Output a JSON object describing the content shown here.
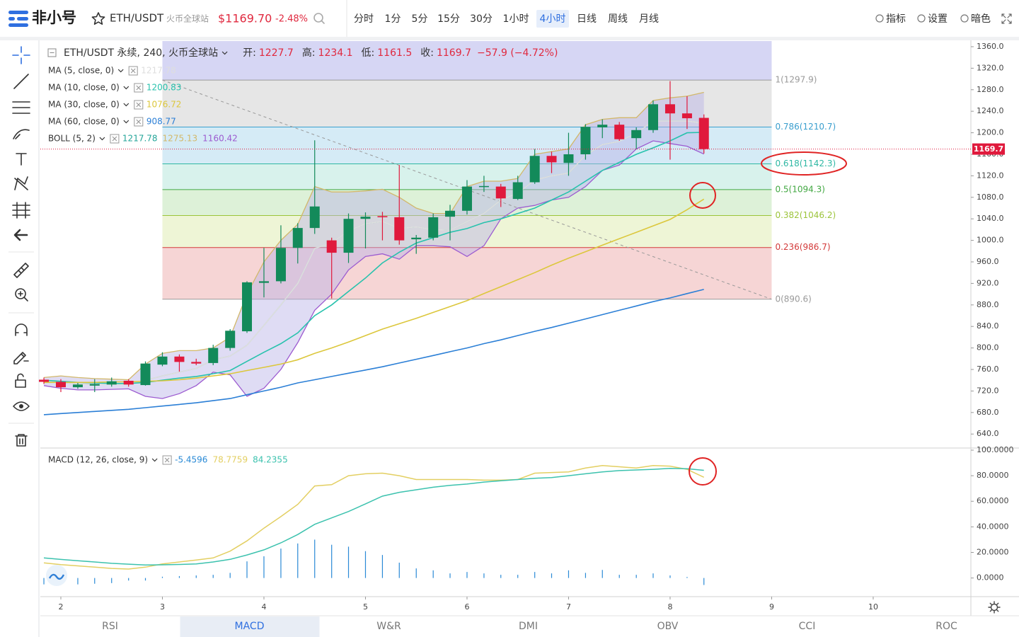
{
  "header": {
    "logo": "非小号",
    "symbol": "ETH/USDT",
    "exchange": "火币全球站",
    "price": "$1169.70",
    "change": "-2.48%"
  },
  "timeframes": [
    "分时",
    "1分",
    "5分",
    "15分",
    "30分",
    "1小时",
    "4小时",
    "日线",
    "周线",
    "月线"
  ],
  "active_timeframe": 6,
  "toolbar_right": [
    "指标",
    "设置",
    "暗色"
  ],
  "legend": {
    "title": "ETH/USDT 永续, 240, 火币全球站",
    "ohlc": [
      {
        "label": "开:",
        "value": 1227.7
      },
      {
        "label": "高:",
        "value": 1234.1
      },
      {
        "label": "低:",
        "value": 1161.5
      },
      {
        "label": "收:",
        "value": 1169.7
      }
    ],
    "change": "−57.9 (−4.72%)"
  },
  "chart_data": [
    {
      "type": "candlestick",
      "x": [
        1.833,
        2,
        2.167,
        2.333,
        2.5,
        2.667,
        2.833,
        3,
        3.167,
        3.333,
        3.5,
        3.667,
        3.833,
        4,
        4.167,
        4.333,
        4.5,
        4.667,
        4.833,
        5,
        5.167,
        5.333,
        5.5,
        5.667,
        5.833,
        6,
        6.167,
        6.333,
        6.5,
        6.667,
        6.833,
        7,
        7.167,
        7.333,
        7.5,
        7.667,
        7.833,
        8,
        8.167,
        8.333
      ],
      "open": [
        741,
        737,
        727,
        730,
        732,
        739,
        731,
        769,
        784,
        774,
        772,
        800,
        831,
        921,
        924,
        986,
        1023,
        1000,
        977,
        1040,
        1045,
        1043,
        1002,
        1005,
        1044,
        1055,
        1099,
        1100,
        1077,
        1108,
        1157,
        1144,
        1160,
        1210,
        1215,
        1190,
        1205,
        1253,
        1236,
        1227.7
      ],
      "high": [
        745,
        742,
        735,
        742,
        745,
        742,
        775,
        792,
        788,
        780,
        806,
        835,
        924,
        986,
        1028,
        1032,
        1186,
        1005,
        1050,
        1052,
        1053,
        1140,
        1010,
        1050,
        1066,
        1112,
        1120,
        1105,
        1120,
        1170,
        1165,
        1200,
        1216,
        1225,
        1220,
        1210,
        1260,
        1296,
        1268,
        1234.1
      ],
      "low": [
        733,
        718,
        724,
        718,
        728,
        728,
        730,
        766,
        756,
        768,
        768,
        795,
        828,
        894,
        920,
        957,
        1012,
        892,
        958,
        985,
        1000,
        992,
        975,
        1000,
        1000,
        1048,
        1090,
        1062,
        1075,
        1105,
        1125,
        1120,
        1150,
        1190,
        1185,
        1170,
        1200,
        1150,
        1207,
        1161.5
      ],
      "close": [
        737,
        727,
        732,
        733,
        738,
        732,
        771,
        784,
        774,
        771,
        800,
        832,
        922,
        924,
        986,
        1023,
        1063,
        977,
        1040,
        1044,
        1043,
        1000,
        1005,
        1043,
        1055,
        1100,
        1101,
        1078,
        1108,
        1157,
        1145,
        1160,
        1211,
        1215,
        1188,
        1205,
        1253,
        1236,
        1227,
        1169.7
      ],
      "up_color": "#138a5a",
      "down_color": "#e0193c",
      "series": [
        {
          "name": "MA (5, close, 0)",
          "color": "#dedede",
          "values": [
            737,
            736,
            733,
            732,
            732,
            732,
            740,
            748,
            755,
            762,
            778,
            785,
            805,
            842,
            880,
            920,
            985,
            995,
            1018,
            1031,
            1035,
            1022,
            1025,
            1020,
            1019,
            1035,
            1050,
            1075,
            1088,
            1112,
            1120,
            1125,
            1158,
            1178,
            1184,
            1199,
            1222,
            1222,
            1222,
            1217.78
          ]
        },
        {
          "name": "MA (10, close, 0)",
          "color": "#28c2ad",
          "values": [
            740,
            738,
            736,
            735,
            734,
            734,
            736,
            740,
            744,
            747,
            752,
            758,
            775,
            792,
            808,
            828,
            860,
            880,
            905,
            930,
            958,
            978,
            995,
            1005,
            1015,
            1022,
            1033,
            1040,
            1050,
            1060,
            1075,
            1090,
            1110,
            1130,
            1145,
            1160,
            1172,
            1185,
            1200,
            1200.83
          ]
        },
        {
          "name": "MA (30, close, 0)",
          "color": "#dcc73c",
          "values": [
            736,
            736,
            736,
            736,
            737,
            737,
            738,
            739,
            741,
            744,
            748,
            752,
            758,
            764,
            770,
            778,
            790,
            800,
            811,
            823,
            835,
            845,
            855,
            866,
            877,
            888,
            901,
            914,
            927,
            940,
            954,
            967,
            979,
            991,
            1003,
            1015,
            1027,
            1039,
            1057,
            1076.72
          ]
        },
        {
          "name": "MA (60, close, 0)",
          "color": "#2b7fd6",
          "values": [
            676,
            678,
            680,
            682,
            684,
            686,
            689,
            692,
            695,
            698,
            702,
            706,
            713,
            720,
            727,
            735,
            741,
            747,
            753,
            759,
            765,
            772,
            779,
            786,
            793,
            800,
            808,
            815,
            823,
            831,
            838,
            846,
            854,
            862,
            870,
            878,
            886,
            893,
            901,
            908.77
          ]
        }
      ],
      "boll": {
        "name": "BOLL (5, 2)",
        "middle": [
          737,
          736,
          733,
          732,
          732,
          732,
          740,
          748,
          755,
          762,
          778,
          785,
          805,
          842,
          880,
          920,
          985,
          995,
          1018,
          1031,
          1035,
          1022,
          1025,
          1020,
          1019,
          1035,
          1050,
          1075,
          1088,
          1112,
          1120,
          1125,
          1158,
          1178,
          1184,
          1199,
          1222,
          1222,
          1222,
          1217.78
        ],
        "upper": [
          745,
          748,
          745,
          743,
          742,
          741,
          770,
          790,
          795,
          795,
          800,
          820,
          900,
          960,
          1000,
          1030,
          1100,
          1090,
          1090,
          1092,
          1095,
          1080,
          1060,
          1050,
          1050,
          1100,
          1110,
          1110,
          1115,
          1160,
          1165,
          1170,
          1215,
          1225,
          1228,
          1228,
          1260,
          1265,
          1268,
          1275.13
        ],
        "lower": [
          730,
          725,
          722,
          722,
          723,
          724,
          710,
          706,
          715,
          730,
          755,
          750,
          710,
          725,
          760,
          810,
          870,
          900,
          945,
          970,
          975,
          965,
          990,
          990,
          988,
          970,
          990,
          1040,
          1060,
          1065,
          1075,
          1080,
          1100,
          1130,
          1140,
          1170,
          1185,
          1180,
          1175,
          1160.42
        ],
        "middle_color": "#26a69a",
        "upper_color": "#d2b86a",
        "lower_color": "#9c5bd0",
        "fill": "#b9b2e6"
      },
      "fib": {
        "x": [
          3,
          9
        ],
        "top_fill": "#d6d6f4",
        "levels": [
          {
            "label": "1(1297.9)",
            "value": 1297.9,
            "color": "#9a9a9a",
            "fill": "#e6e6e6"
          },
          {
            "label": "0.786(1210.7)",
            "value": 1210.7,
            "color": "#3b9fce",
            "fill": "#d5ebf6"
          },
          {
            "label": "0.618(1142.3)",
            "value": 1142.3,
            "color": "#2fb8a4",
            "fill": "#d8f2ec"
          },
          {
            "label": "0.5(1094.3)",
            "value": 1094.3,
            "color": "#43a843",
            "fill": "#ddf1d8"
          },
          {
            "label": "0.382(1046.2)",
            "value": 1046.2,
            "color": "#9cc43a",
            "fill": "#eef5d6"
          },
          {
            "label": "0.236(986.7)",
            "value": 986.7,
            "color": "#d33a3a",
            "fill": "#f6d5d5"
          },
          {
            "label": "0(890.6)",
            "value": 890.6,
            "color": "#9a9a9a"
          }
        ]
      },
      "trend_line": {
        "x": [
          3,
          9
        ],
        "values": [
          1297.9,
          890.6
        ],
        "color": "#999999"
      },
      "last_price": 1169.7,
      "xlim": [
        1.798,
        10.962
      ],
      "xticks": [
        2,
        3,
        4,
        5,
        6,
        7,
        8,
        9,
        10
      ],
      "ylim": [
        615.3,
        1371.8
      ],
      "yticks": [
        {
          "value": 1360,
          "label": "1360.0"
        },
        {
          "value": 1320,
          "label": "1320.0"
        },
        {
          "value": 1280,
          "label": "1280.0"
        },
        {
          "value": 1240,
          "label": "1240.0"
        },
        {
          "value": 1200,
          "label": "1200.0"
        },
        {
          "value": 1160,
          "label": "1160.0"
        },
        {
          "value": 1120,
          "label": "1120.0"
        },
        {
          "value": 1080,
          "label": "1080.0"
        },
        {
          "value": 1040,
          "label": "1040.0"
        },
        {
          "value": 1000,
          "label": "1000.0"
        },
        {
          "value": 960,
          "label": "960.0"
        },
        {
          "value": 920,
          "label": "920.0"
        },
        {
          "value": 880,
          "label": "880.0"
        },
        {
          "value": 840,
          "label": "840.0"
        },
        {
          "value": 800,
          "label": "800.0"
        },
        {
          "value": 760,
          "label": "760.0"
        },
        {
          "value": 720,
          "label": "720.0"
        },
        {
          "value": 680,
          "label": "680.0"
        },
        {
          "value": 640,
          "label": "640.0"
        }
      ]
    },
    {
      "type": "macd",
      "name": "MACD (12, 26, close, 9)",
      "x": [
        1.833,
        2,
        2.167,
        2.333,
        2.5,
        2.667,
        2.833,
        3,
        3.167,
        3.333,
        3.5,
        3.667,
        3.833,
        4,
        4.167,
        4.333,
        4.5,
        4.667,
        4.833,
        5,
        5.167,
        5.333,
        5.5,
        5.667,
        5.833,
        6,
        6.167,
        6.333,
        6.5,
        6.667,
        6.833,
        7,
        7.167,
        7.333,
        7.5,
        7.667,
        7.833,
        8,
        8.167,
        8.333
      ],
      "histogram": [
        -5,
        -5,
        -5,
        -4.5,
        -4,
        -2,
        -2,
        1,
        1.5,
        2,
        2.5,
        4,
        13,
        17,
        23,
        27,
        30,
        26,
        24.5,
        21,
        18,
        12,
        7.5,
        6,
        3.6,
        4.7,
        3.6,
        2.5,
        2.5,
        4.7,
        3.6,
        6,
        4,
        6.3,
        2.5,
        2.5,
        3.6,
        2,
        0.8,
        -5.4596
      ],
      "signal": [
        11.8,
        10.5,
        9.5,
        8.5,
        7.5,
        7,
        8.5,
        11,
        12.5,
        14,
        15.7,
        21,
        29,
        39,
        48,
        57.6,
        72,
        73,
        80,
        81.5,
        82,
        80,
        77,
        77,
        77,
        77,
        76.5,
        76.5,
        77,
        82,
        82.5,
        83,
        86,
        88,
        87,
        86,
        88,
        87.5,
        85,
        78.7759
      ],
      "macd": [
        15.7,
        14.5,
        13.5,
        12.5,
        11.5,
        10.8,
        10.2,
        10.3,
        10.6,
        11,
        12.5,
        14.6,
        18,
        22,
        27.5,
        34,
        42,
        47,
        52,
        58,
        64,
        67,
        69,
        71,
        72.5,
        73.5,
        75,
        76,
        77,
        78,
        78.5,
        80,
        81.5,
        83,
        84,
        84.5,
        85,
        85.7,
        85.5,
        84.2355
      ],
      "histogram_color": "#2a8ad6",
      "signal_color": "#e3cf62",
      "macd_color": "#3cc2ae",
      "xlim": [
        1.798,
        10.962
      ],
      "ylim": [
        -14.6,
        101.1
      ],
      "yticks": [
        {
          "value": 100,
          "label": "100.0000"
        },
        {
          "value": 80,
          "label": "80.0000"
        },
        {
          "value": 60,
          "label": "60.0000"
        },
        {
          "value": 40,
          "label": "40.0000"
        },
        {
          "value": 20,
          "label": "20.0000"
        },
        {
          "value": 0,
          "label": "0.0000"
        }
      ]
    }
  ],
  "tabs": [
    "RSI",
    "MACD",
    "W&R",
    "DMI",
    "OBV",
    "CCI",
    "ROC"
  ],
  "active_tab": 1
}
